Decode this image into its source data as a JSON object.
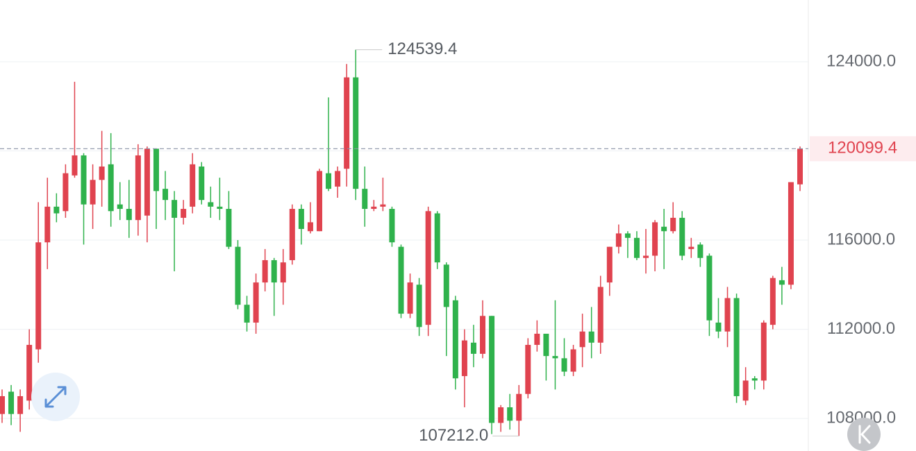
{
  "chart_data": {
    "type": "candlestick",
    "up_color": "#e0434f",
    "down_color": "#2fb24c",
    "grid": true,
    "ylim": [
      106540,
      126770
    ],
    "yticks": [
      {
        "value": 124000,
        "label": "124000.0"
      },
      {
        "value": 116000,
        "label": "116000.0"
      },
      {
        "value": 112000,
        "label": "112000.0"
      },
      {
        "value": 108000,
        "label": "108000.0"
      }
    ],
    "grid_values": [
      124000,
      120000,
      116000,
      112000,
      108000
    ],
    "high_marker": {
      "value": 124539.4,
      "label": "124539.4"
    },
    "low_marker": {
      "value": 107212,
      "label": "107212.0"
    },
    "last_price": {
      "value": 120099.4,
      "label": "120099.4"
    },
    "open": [
      108200,
      109200,
      108200,
      108800,
      111100,
      115900,
      117500,
      117300,
      118900,
      119800,
      117600,
      118700,
      119400,
      117600,
      117400,
      116900,
      117100,
      120100,
      118300,
      117800,
      117000,
      117500,
      119300,
      117700,
      117500,
      117400,
      115700,
      113100,
      112300,
      114100,
      115100,
      114100,
      115100,
      117400,
      116400,
      116400,
      119000,
      118400,
      119200,
      123300,
      118300,
      117400,
      117500,
      117400,
      115700,
      112700,
      114000,
      112200,
      117200,
      114900,
      113300,
      109900,
      111400,
      110900,
      112600,
      107800,
      108500,
      107900,
      109100,
      111300,
      111800,
      110800,
      110700,
      110100,
      111200,
      111900,
      111400,
      114100,
      115700,
      116300,
      116100,
      115200,
      115300,
      116600,
      116400,
      117000,
      115600,
      115800,
      115300,
      112300,
      111900,
      113400,
      108800,
      109800,
      109700,
      112200,
      114200,
      114000,
      118500
    ],
    "high": [
      109300,
      109500,
      109300,
      112000,
      117700,
      118800,
      118100,
      119400,
      123100,
      119900,
      119400,
      120900,
      120800,
      118600,
      118700,
      120300,
      120200,
      120100,
      119100,
      118200,
      117800,
      119900,
      119500,
      118400,
      118800,
      118200,
      116000,
      113500,
      114500,
      115600,
      115200,
      115600,
      117600,
      117600,
      117700,
      119200,
      122400,
      119300,
      123900,
      124539.4,
      119300,
      117800,
      118800,
      117500,
      115800,
      114500,
      114300,
      117500,
      117300,
      115000,
      113500,
      112000,
      112200,
      113300,
      112600,
      108600,
      109100,
      109500,
      111600,
      112400,
      111800,
      113300,
      111600,
      111300,
      112700,
      113000,
      114400,
      115700,
      116700,
      116400,
      116400,
      116500,
      116900,
      117400,
      117700,
      117300,
      116100,
      115900,
      115400,
      113400,
      113900,
      113600,
      110300,
      109900,
      112400,
      114400,
      114800,
      118600,
      120200
    ],
    "low": [
      107800,
      107700,
      107400,
      108400,
      110500,
      114700,
      116800,
      117000,
      118800,
      115800,
      116500,
      117500,
      116600,
      116900,
      116100,
      116200,
      115900,
      116500,
      116900,
      114600,
      116700,
      117200,
      117600,
      117000,
      116900,
      115600,
      112900,
      111900,
      111800,
      113700,
      112600,
      113100,
      114900,
      115800,
      116300,
      116400,
      118200,
      117900,
      118400,
      117800,
      116600,
      117300,
      117300,
      115700,
      112500,
      112500,
      111700,
      111700,
      114700,
      110800,
      109300,
      108500,
      110300,
      110700,
      107300,
      107400,
      107500,
      107212,
      108900,
      111000,
      109700,
      109300,
      109900,
      109900,
      110300,
      110700,
      110900,
      113500,
      115400,
      115200,
      115100,
      114500,
      114600,
      114700,
      116300,
      115100,
      115200,
      114800,
      111700,
      111600,
      111200,
      108700,
      108600,
      109300,
      109300,
      112000,
      113100,
      113800,
      118200
    ],
    "close": [
      109000,
      108200,
      109000,
      111300,
      115900,
      117500,
      117200,
      119000,
      119800,
      117600,
      118700,
      119300,
      117300,
      117400,
      116900,
      119800,
      120100,
      118200,
      117800,
      117000,
      117400,
      119400,
      117800,
      117500,
      117400,
      115700,
      113100,
      112300,
      114100,
      115100,
      114100,
      115000,
      117400,
      116500,
      116800,
      119100,
      118300,
      119100,
      123300,
      118300,
      117400,
      117500,
      117600,
      115900,
      112700,
      114100,
      112100,
      117300,
      115000,
      113000,
      109800,
      111500,
      110900,
      112600,
      107800,
      108500,
      107900,
      109100,
      111300,
      111800,
      110800,
      110700,
      110100,
      111100,
      111900,
      111400,
      113900,
      115700,
      116300,
      116100,
      115200,
      115300,
      116800,
      116400,
      117000,
      115300,
      115700,
      115200,
      112400,
      111900,
      113400,
      109000,
      109700,
      109700,
      112300,
      114300,
      114000,
      118600,
      120099.4
    ]
  }
}
